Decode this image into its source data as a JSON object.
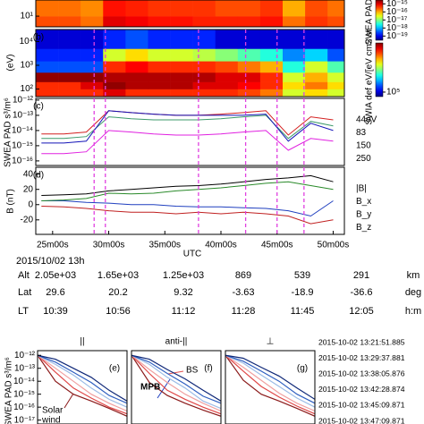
{
  "chart_data": [
    {
      "type": "heatmap",
      "log": true,
      "x_edges": [
        23.5,
        25.5,
        27.5,
        29.5,
        31.5,
        33.5,
        35.5,
        37.5,
        39.5,
        41.5,
        43.5,
        45.5,
        47.5,
        49.5,
        51
      ],
      "y_edges": [
        4,
        10,
        40
      ],
      "xlim": [
        23.5,
        51
      ],
      "ylim": [
        4,
        40
      ],
      "yticks": [
        {
          "value": 10,
          "label": "10¹"
        }
      ],
      "z": [
        [
          3e-16,
          3e-16,
          2e-16,
          1e-15,
          8e-16,
          6e-16,
          6e-16,
          5e-16,
          5e-16,
          5e-16,
          6e-16,
          2e-16,
          4e-16,
          3e-16
        ],
        [
          2e-16,
          2e-16,
          1.5e-16,
          6e-16,
          5e-16,
          4e-16,
          4e-16,
          4e-16,
          3e-16,
          3e-16,
          4e-16,
          1e-16,
          3e-16,
          2e-16
        ]
      ],
      "colorbar": {
        "label": "SWEA PAD",
        "zlim": [
          3e-20,
          3e-15
        ],
        "ticks": [
          {
            "value": 1e-15,
            "label": "10⁻¹⁵"
          },
          {
            "value": 1e-16,
            "label": "10⁻¹⁶"
          },
          {
            "value": 1e-17,
            "label": "10⁻¹⁷"
          },
          {
            "value": 1e-18,
            "label": "10⁻¹⁸"
          },
          {
            "value": 1e-19,
            "label": "10⁻¹⁹"
          }
        ]
      }
    },
    {
      "type": "heatmap",
      "log": true,
      "label": "(b)",
      "ylabel": "(eV)",
      "x_edges": [
        23.5,
        25.5,
        27.5,
        29.5,
        31.5,
        33.5,
        35.5,
        37.5,
        39.5,
        41.5,
        43.5,
        45.5,
        47.5,
        49.5,
        51
      ],
      "y_edges": [
        48,
        100,
        200,
        500,
        1500,
        5000,
        32000
      ],
      "xlim": [
        23.5,
        51
      ],
      "ylim": [
        48,
        32000
      ],
      "yticks": [
        {
          "value": 100,
          "label": "10²"
        },
        {
          "value": 1000,
          "label": "10³"
        },
        {
          "value": 10000,
          "label": "10⁴"
        }
      ],
      "z": [
        [
          100000000.0,
          100000000.0,
          100000000.0,
          200000000.0,
          100000000.0,
          100000000.0,
          100000000.0,
          100000000.0,
          100000000.0,
          80000000.0,
          50000000.0,
          10000000.0,
          20000000.0,
          10000000.0
        ],
        [
          100000000.0,
          100000000.0,
          200000000.0,
          400000000.0,
          300000000.0,
          300000000.0,
          300000000.0,
          200000000.0,
          200000000.0,
          150000000.0,
          100000000.0,
          20000000.0,
          50000000.0,
          20000000.0
        ],
        [
          400000000.0,
          400000000.0,
          400000000.0,
          300000000.0,
          300000000.0,
          300000000.0,
          300000000.0,
          300000000.0,
          200000000.0,
          200000000.0,
          100000000.0,
          10000000.0,
          30000000.0,
          10000000.0
        ],
        [
          300000.0,
          300000.0,
          300000.0,
          100000000.0,
          150000000.0,
          100000000.0,
          100000000.0,
          100000000.0,
          80000000.0,
          50000000.0,
          30000000.0,
          2000000.0,
          10000000.0,
          3000000.0
        ],
        [
          200000.0,
          200000.0,
          200000.0,
          10000000.0,
          20000000.0,
          10000000.0,
          10000000.0,
          8000000.0,
          5000000.0,
          3000000.0,
          2000000.0,
          500000.0,
          1000000.0,
          300000.0
        ],
        [
          100000.0,
          100000.0,
          100000.0,
          200000.0,
          300000.0,
          200000.0,
          200000.0,
          200000.0,
          100000.0,
          100000.0,
          100000.0,
          100000.0,
          100000.0,
          100000.0
        ]
      ],
      "colorbar": {
        "label": "SWIA def eV/[eV cm2 sr",
        "zlim": [
          46000,
          470000000
        ],
        "ticks": [
          {
            "value": 100000,
            "label": "10⁵"
          }
        ]
      }
    },
    {
      "type": "line",
      "log": true,
      "label": "(c)",
      "ylabel": "SWEA PAD s³/m⁶",
      "x": [
        24,
        26,
        28,
        30,
        32,
        34,
        36,
        38,
        40,
        42,
        44,
        46,
        48,
        50
      ],
      "xlim": [
        23.5,
        51
      ],
      "ylim": [
        5e-17,
        1.3e-12
      ],
      "yticks": [
        {
          "value": 1e-12,
          "label": "10⁻¹²"
        },
        {
          "value": 1e-13,
          "label": "10⁻¹³"
        },
        {
          "value": 1e-14,
          "label": "10⁻¹⁴"
        },
        {
          "value": 1e-15,
          "label": "10⁻¹⁵"
        },
        {
          "value": 1e-16,
          "label": "10⁻¹⁶"
        }
      ],
      "series": [
        {
          "name": "44eV",
          "color": "#d42020",
          "values": [
            6e-15,
            6e-15,
            8e-15,
            2e-13,
            1.5e-13,
            1.2e-13,
            1e-13,
            1e-13,
            1.2e-13,
            1.5e-13,
            2e-13,
            5e-15,
            8e-14,
            5e-14
          ]
        },
        {
          "name": "83",
          "color": "#3c9a6a",
          "values": [
            3e-15,
            3e-15,
            4e-15,
            8e-14,
            6e-14,
            5e-14,
            5e-14,
            5e-14,
            6e-14,
            8e-14,
            1e-13,
            3e-15,
            4e-14,
            2e-14
          ]
        },
        {
          "name": "150",
          "color": "#1414b8",
          "values": [
            1.5e-15,
            1.5e-15,
            2e-15,
            2e-13,
            1.5e-13,
            1.2e-13,
            1e-13,
            1e-13,
            1e-13,
            1e-13,
            1.2e-13,
            2e-15,
            3e-14,
            1e-14
          ]
        },
        {
          "name": "250",
          "color": "#e020e0",
          "values": [
            3e-16,
            3e-16,
            4e-16,
            1e-14,
            8e-15,
            6e-15,
            5e-15,
            5e-15,
            6e-15,
            8e-15,
            1e-14,
            5e-16,
            3e-15,
            2e-15
          ]
        }
      ]
    },
    {
      "type": "line",
      "label": "(d)",
      "ylabel": "B (nT)",
      "xlabel": "UTC",
      "x": [
        24,
        26,
        28,
        30,
        32,
        34,
        36,
        38,
        40,
        42,
        44,
        46,
        48,
        50
      ],
      "xlim": [
        23.5,
        51
      ],
      "ylim": [
        -39,
        49
      ],
      "yticks": [
        -20,
        0,
        20,
        40
      ],
      "xticks": [
        {
          "value": 25,
          "label": "25m00s"
        },
        {
          "value": 30,
          "label": "30m00s"
        },
        {
          "value": 35,
          "label": "35m00s"
        },
        {
          "value": 40,
          "label": "40m00s"
        },
        {
          "value": 45,
          "label": "45m00s"
        },
        {
          "value": 50,
          "label": "50m00s"
        }
      ],
      "event_lines": [
        28.7,
        29.7,
        38,
        42.2,
        45,
        47.4
      ],
      "event_color": "#e040e0",
      "series": [
        {
          "name": "|B|",
          "color": "#000000",
          "values": [
            12,
            13,
            14,
            18,
            20,
            22,
            24,
            25,
            27,
            30,
            33,
            35,
            38,
            30
          ]
        },
        {
          "name": "B_x",
          "color": "#1f3fbf",
          "values": [
            5,
            5,
            3,
            2,
            0,
            0,
            -2,
            -3,
            -3,
            -4,
            -5,
            -8,
            -15,
            5
          ]
        },
        {
          "name": "B_y",
          "color": "#2a8a2a",
          "values": [
            5,
            6,
            8,
            15,
            14,
            15,
            18,
            20,
            22,
            25,
            28,
            30,
            25,
            20
          ]
        },
        {
          "name": "B_z",
          "color": "#c02020",
          "values": [
            -2,
            -3,
            -5,
            -8,
            -10,
            -10,
            -12,
            -10,
            -12,
            -10,
            -12,
            -15,
            -25,
            -20
          ]
        }
      ]
    },
    {
      "type": "pad",
      "log": true,
      "title": "||",
      "label": "(e)",
      "ylabel": "SWEA PAD s³/m⁶",
      "x": [
        0,
        2,
        4,
        6,
        8,
        10
      ],
      "xlim": [
        0,
        10
      ],
      "ylim": [
        5e-18,
        2.3e-12
      ],
      "yticks": [
        {
          "value": 1e-12,
          "label": "10⁻¹²"
        },
        {
          "value": 1e-13,
          "label": "10⁻¹³"
        },
        {
          "value": 1e-14,
          "label": "10⁻¹⁴"
        },
        {
          "value": 1e-15,
          "label": "10⁻¹⁵"
        },
        {
          "value": 1e-16,
          "label": "10⁻¹⁶"
        },
        {
          "value": 1e-17,
          "label": "10⁻¹⁷"
        }
      ],
      "series": [
        {
          "values": [
            1e-12,
            1e-14,
            1e-15,
            3e-16,
            8e-17,
            2e-17
          ]
        },
        {
          "values": [
            1e-12,
            5e-14,
            3e-15,
            5e-16,
            1e-16,
            3e-17
          ]
        },
        {
          "values": [
            1e-12,
            1e-13,
            1e-14,
            1e-15,
            2e-16,
            5e-17
          ]
        },
        {
          "values": [
            1e-12,
            2e-13,
            3e-14,
            3e-15,
            4e-16,
            1e-16
          ]
        },
        {
          "values": [
            1e-12,
            3e-13,
            5e-14,
            8e-15,
            8e-16,
            2e-16
          ]
        },
        {
          "values": [
            1e-12,
            5e-13,
            1e-13,
            2e-14,
            2e-15,
            3e-16
          ]
        }
      ],
      "annotation_lines": [
        "Solar",
        "wind"
      ]
    },
    {
      "type": "pad",
      "log": true,
      "title": "anti-||",
      "label": "(f)",
      "x": [
        0,
        2,
        4,
        6,
        8,
        10
      ],
      "xlim": [
        0,
        10
      ],
      "ylim": [
        5e-18,
        2.3e-12
      ],
      "series": [
        {
          "values": [
            1e-12,
            8e-15,
            8e-16,
            2e-16,
            6e-17,
            2e-17
          ]
        },
        {
          "values": [
            1e-12,
            4e-14,
            2e-15,
            4e-16,
            1e-16,
            3e-17
          ]
        },
        {
          "values": [
            1e-12,
            8e-14,
            8e-15,
            1e-15,
            2e-16,
            5e-17
          ]
        },
        {
          "values": [
            1e-12,
            2e-13,
            2e-14,
            3e-15,
            3e-16,
            8e-17
          ]
        },
        {
          "values": [
            1e-12,
            3e-13,
            4e-14,
            6e-15,
            7e-16,
            2e-16
          ]
        },
        {
          "values": [
            1e-12,
            5e-13,
            8e-14,
            1.5e-14,
            2e-15,
            3e-16
          ]
        }
      ],
      "annotations": [
        {
          "text": "MPB",
          "color": "#1f3fbf"
        },
        {
          "text": "BS",
          "color": "#e05050"
        }
      ]
    },
    {
      "type": "pad",
      "log": true,
      "title": "⊥",
      "label": "(g)",
      "x": [
        0,
        2,
        4,
        6,
        8,
        10
      ],
      "xlim": [
        0,
        10
      ],
      "ylim": [
        5e-18,
        2.3e-12
      ],
      "series": [
        {
          "values": [
            1e-12,
            1.2e-14,
            1e-15,
            3e-16,
            8e-17,
            2e-17
          ]
        },
        {
          "values": [
            1e-12,
            6e-14,
            4e-15,
            6e-16,
            1.2e-16,
            3e-17
          ]
        },
        {
          "values": [
            1e-12,
            1.2e-13,
            1.2e-14,
            1.2e-15,
            2e-16,
            5e-17
          ]
        },
        {
          "values": [
            1e-12,
            2.5e-13,
            3e-14,
            4e-15,
            5e-16,
            1e-16
          ]
        },
        {
          "values": [
            1e-12,
            3.5e-13,
            6e-14,
            1e-14,
            1e-15,
            2e-16
          ]
        },
        {
          "values": [
            1e-12,
            6e-13,
            1.2e-13,
            2.5e-14,
            3e-15,
            4e-16
          ]
        }
      ]
    }
  ],
  "legend": [
    {
      "name": "2015-10-02 13:21:51.885",
      "color": "#8b1a1a"
    },
    {
      "name": "2015-10-02 13:29:37.881",
      "color": "#e04848"
    },
    {
      "name": "2015-10-02 13:38:05.876",
      "color": "#f0a0a0"
    },
    {
      "name": "2015-10-02 13:42:28.874",
      "color": "#9cbce6"
    },
    {
      "name": "2015-10-02 13:45:09.871",
      "color": "#2f5fc0"
    },
    {
      "name": "2015-10-02 13:47:09.871",
      "color": "#0f2878"
    }
  ],
  "table": {
    "title": "2015/10/02 13h",
    "rows": [
      [
        "Alt",
        "2.05e+03",
        "1.65e+03",
        "1.25e+03",
        "869",
        "539",
        "291",
        "km"
      ],
      [
        "Lat",
        "29.6",
        "20.2",
        "9.32",
        "-3.63",
        "-18.9",
        "-36.6",
        "deg"
      ],
      [
        "LT",
        "10:39",
        "10:56",
        "11:12",
        "11:28",
        "11:45",
        "12:05",
        "h:m"
      ]
    ]
  }
}
